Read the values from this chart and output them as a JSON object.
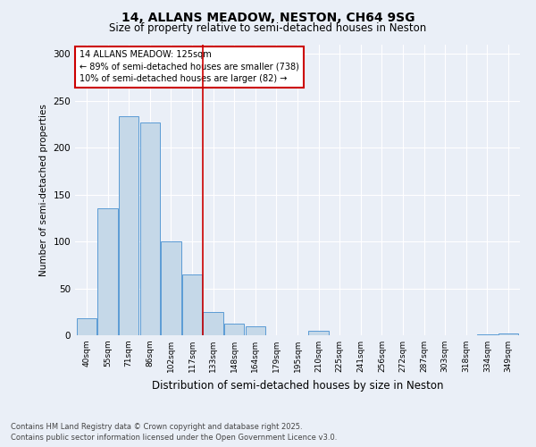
{
  "title": "14, ALLANS MEADOW, NESTON, CH64 9SG",
  "subtitle": "Size of property relative to semi-detached houses in Neston",
  "xlabel": "Distribution of semi-detached houses by size in Neston",
  "ylabel": "Number of semi-detached properties",
  "categories": [
    "40sqm",
    "55sqm",
    "71sqm",
    "86sqm",
    "102sqm",
    "117sqm",
    "133sqm",
    "148sqm",
    "164sqm",
    "179sqm",
    "195sqm",
    "210sqm",
    "225sqm",
    "241sqm",
    "256sqm",
    "272sqm",
    "287sqm",
    "303sqm",
    "318sqm",
    "334sqm",
    "349sqm"
  ],
  "values": [
    18,
    135,
    234,
    227,
    100,
    65,
    25,
    12,
    10,
    0,
    0,
    5,
    0,
    0,
    0,
    0,
    0,
    0,
    0,
    1,
    2
  ],
  "bar_color": "#c5d8e8",
  "bar_edge_color": "#5b9bd5",
  "vline_color": "#cc0000",
  "annotation_title": "14 ALLANS MEADOW: 125sqm",
  "annotation_line1": "← 89% of semi-detached houses are smaller (738)",
  "annotation_line2": "10% of semi-detached houses are larger (82) →",
  "annotation_box_color": "#cc0000",
  "ylim": [
    0,
    310
  ],
  "yticks": [
    0,
    50,
    100,
    150,
    200,
    250,
    300
  ],
  "footnote1": "Contains HM Land Registry data © Crown copyright and database right 2025.",
  "footnote2": "Contains public sector information licensed under the Open Government Licence v3.0.",
  "bg_color": "#eaeff7",
  "plot_bg_color": "#eaeff7"
}
